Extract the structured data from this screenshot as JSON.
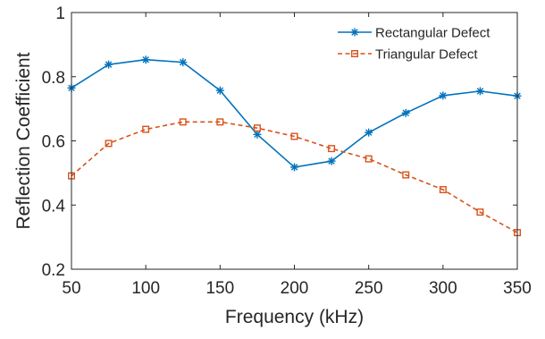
{
  "chart_data": {
    "type": "line",
    "title": "",
    "xlabel": "Frequency (kHz)",
    "ylabel": "Reflection Coefficient",
    "xlim": [
      50,
      350
    ],
    "ylim": [
      0.2,
      1
    ],
    "x_ticks": [
      "50",
      "100",
      "150",
      "200",
      "250",
      "300",
      "350"
    ],
    "y_ticks": [
      "0.2",
      "0.4",
      "0.6",
      "0.8",
      "1"
    ],
    "grid": false,
    "legend_position": "top-right",
    "x": [
      50,
      75,
      100,
      125,
      150,
      175,
      200,
      225,
      250,
      275,
      300,
      325,
      350
    ],
    "series": [
      {
        "name": "Rectangular Defect",
        "color": "#0072BD",
        "line_style": "solid",
        "marker": "asterisk",
        "values": [
          0.765,
          0.838,
          0.853,
          0.845,
          0.757,
          0.62,
          0.518,
          0.537,
          0.626,
          0.687,
          0.741,
          0.755,
          0.74
        ]
      },
      {
        "name": "Triangular Defect",
        "color": "#D95319",
        "line_style": "dashed",
        "marker": "square",
        "values": [
          0.491,
          0.592,
          0.636,
          0.659,
          0.659,
          0.64,
          0.614,
          0.576,
          0.544,
          0.494,
          0.448,
          0.378,
          0.314
        ]
      }
    ]
  }
}
